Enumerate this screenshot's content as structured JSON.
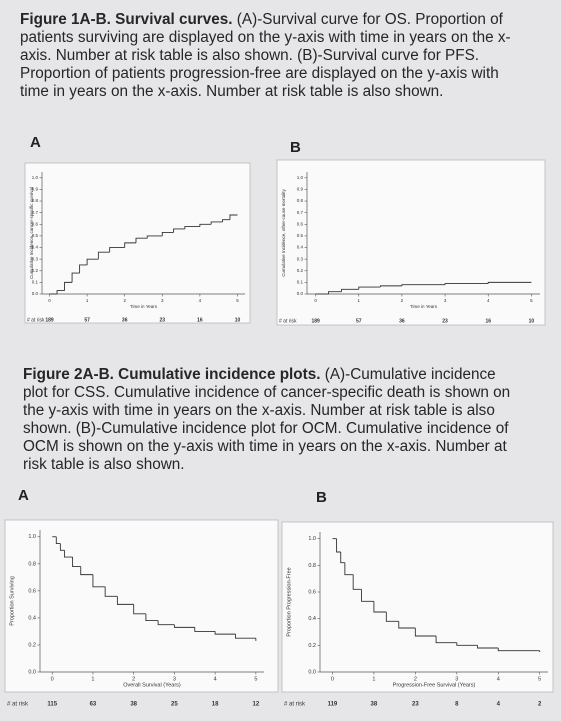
{
  "figure1": {
    "caption_title": "Figure 1A-B. Survival curves.",
    "caption_text": "(A)-Survival curve for OS. Proportion of patients surviving are displayed on the y-axis with time in years on the x-axis. Number at risk table is also shown. (B)-Survival curve for PFS. Proportion of patients progression-free are displayed on the y-axis with time in years on the x-axis. Number at risk table is also shown."
  },
  "figure2": {
    "caption_title": "Figure 2A-B. Cumulative incidence plots.",
    "caption_text": "(A)-Cumulative incidence plot for CSS. Cumulative incidence of cancer-specific death is shown on the y-axis with time in years on the x-axis. Number at risk table is also shown. (B)-Cumulative incidence plot for OCM. Cumulative incidence of OCM is shown on the y-axis with time in years on the x-axis. Number at risk table is also shown."
  },
  "chart_data": [
    {
      "type": "step",
      "panel_label": "A",
      "ylabel": "Cumulative Incidence, cancer-specific survival",
      "xlabel": "Time in Years",
      "color": "#333333",
      "x": [
        0,
        0.2,
        0.4,
        0.6,
        0.8,
        1.0,
        1.3,
        1.6,
        2.0,
        2.3,
        2.6,
        3.0,
        3.3,
        3.6,
        4.0,
        4.3,
        4.6,
        4.8,
        5.0
      ],
      "y": [
        0,
        0.03,
        0.1,
        0.18,
        0.25,
        0.3,
        0.36,
        0.4,
        0.44,
        0.48,
        0.5,
        0.53,
        0.56,
        0.58,
        0.6,
        0.62,
        0.64,
        0.68,
        0.68
      ],
      "xlim": [
        -0.2,
        5.2
      ],
      "ylim": [
        0,
        1.05
      ],
      "xticks": [
        0,
        1,
        2,
        3,
        4,
        5
      ],
      "yticks": [
        {
          "value": 0,
          "label": "0.0"
        },
        0.1,
        0.2,
        0.3,
        0.4,
        0.5,
        0.6,
        0.7,
        0.8,
        0.9,
        {
          "value": 1,
          "label": "1.0"
        }
      ],
      "at_risk_label": "# at risk",
      "at_risk": [
        189,
        57,
        36,
        23,
        16,
        10
      ]
    },
    {
      "type": "step",
      "panel_label": "B",
      "ylabel": "Cumulative Incidence, other-cause mortality",
      "xlabel": "Time in Years",
      "color": "#333333",
      "x": [
        0,
        0.3,
        0.6,
        1.0,
        1.5,
        2.0,
        3.0,
        4.0,
        5.0
      ],
      "y": [
        0,
        0.02,
        0.04,
        0.06,
        0.07,
        0.08,
        0.09,
        0.1,
        0.1
      ],
      "xlim": [
        -0.2,
        5.2
      ],
      "ylim": [
        0,
        1.05
      ],
      "xticks": [
        0,
        1,
        2,
        3,
        4,
        5
      ],
      "yticks": [
        {
          "value": 0,
          "label": "0.0"
        },
        0.1,
        0.2,
        0.3,
        0.4,
        0.5,
        0.6,
        0.7,
        0.8,
        0.9,
        {
          "value": 1,
          "label": "1.0"
        }
      ],
      "at_risk_label": "# at risk",
      "at_risk": [
        189,
        57,
        36,
        23,
        16,
        10
      ]
    },
    {
      "type": "step",
      "panel_label": "A",
      "ylabel": "Proportion Surviving",
      "xlabel": "Overall Survival (Years)",
      "color": "#333333",
      "x": [
        0,
        0.1,
        0.2,
        0.3,
        0.5,
        0.7,
        1.0,
        1.3,
        1.6,
        2.0,
        2.3,
        2.6,
        3.0,
        3.5,
        4.0,
        4.5,
        5.0
      ],
      "y": [
        1,
        0.95,
        0.9,
        0.85,
        0.78,
        0.72,
        0.63,
        0.56,
        0.5,
        0.43,
        0.38,
        0.35,
        0.33,
        0.3,
        0.28,
        0.25,
        0.23
      ],
      "xlim": [
        -0.3,
        5.2
      ],
      "ylim": [
        0,
        1.05
      ],
      "xticks": [
        0,
        1,
        2,
        3,
        4,
        5
      ],
      "yticks": [
        {
          "value": 0,
          "label": "0.0"
        },
        0.2,
        0.4,
        0.6,
        0.8,
        {
          "value": 1,
          "label": "1.0"
        }
      ],
      "at_risk_label": "# at risk",
      "at_risk": [
        115,
        63,
        38,
        25,
        18,
        12
      ]
    },
    {
      "type": "step",
      "panel_label": "B",
      "ylabel": "Proportion Progression-Free",
      "xlabel": "Progression-Free Survival (Years)",
      "color": "#333333",
      "x": [
        0,
        0.1,
        0.2,
        0.3,
        0.5,
        0.7,
        1.0,
        1.3,
        1.6,
        2.0,
        2.5,
        3.0,
        3.5,
        4.0,
        5.0
      ],
      "y": [
        1,
        0.9,
        0.82,
        0.73,
        0.62,
        0.53,
        0.45,
        0.38,
        0.33,
        0.27,
        0.22,
        0.2,
        0.18,
        0.16,
        0.15
      ],
      "xlim": [
        -0.3,
        5.2
      ],
      "ylim": [
        0,
        1.05
      ],
      "xticks": [
        0,
        1,
        2,
        3,
        4,
        5
      ],
      "yticks": [
        {
          "value": 0,
          "label": "0.0"
        },
        0.2,
        0.4,
        0.6,
        0.8,
        {
          "value": 1,
          "label": "1.0"
        }
      ],
      "at_risk_label": "# at risk",
      "at_risk": [
        119,
        38,
        23,
        8,
        4,
        2
      ]
    }
  ]
}
